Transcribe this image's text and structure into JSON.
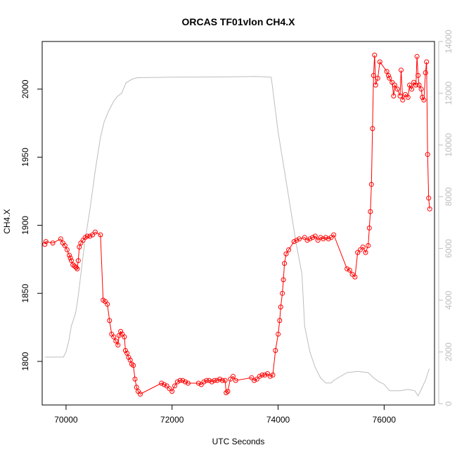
{
  "chart_data": {
    "type": "line",
    "title": "ORCAS TF01vlon CH4.X",
    "xlabel": "UTC Seconds",
    "ylabel": "CH4.X",
    "y2label": "",
    "xlim": [
      69550,
      76950
    ],
    "ylim": [
      1768,
      2035
    ],
    "y2lim": [
      -50,
      14000
    ],
    "x_ticks": [
      "70000",
      "72000",
      "74000",
      "76000"
    ],
    "y_ticks": [
      "1800",
      "1850",
      "1900",
      "1950",
      "2000"
    ],
    "y2_ticks": [
      "0",
      "2000",
      "4000",
      "6000",
      "8000",
      "10000",
      "12000",
      "14000"
    ],
    "grid": false,
    "legend": "none",
    "series": [
      {
        "axis": "right",
        "color": "#bdbdbd",
        "points": [
          [
            69600,
            1800
          ],
          [
            69950,
            1800
          ],
          [
            70000,
            2000
          ],
          [
            70050,
            2400
          ],
          [
            70100,
            3000
          ],
          [
            70180,
            3500
          ],
          [
            70220,
            4000
          ],
          [
            70280,
            5000
          ],
          [
            70350,
            6200
          ],
          [
            70450,
            7500
          ],
          [
            70550,
            9000
          ],
          [
            70650,
            10300
          ],
          [
            70720,
            10900
          ],
          [
            70800,
            11300
          ],
          [
            70900,
            11700
          ],
          [
            70980,
            11900
          ],
          [
            71050,
            12000
          ],
          [
            71130,
            12400
          ],
          [
            71250,
            12550
          ],
          [
            71350,
            12600
          ],
          [
            72000,
            12620
          ],
          [
            73000,
            12630
          ],
          [
            73600,
            12650
          ],
          [
            73870,
            12620
          ],
          [
            74000,
            10500
          ],
          [
            74120,
            9000
          ],
          [
            74230,
            7600
          ],
          [
            74340,
            6200
          ],
          [
            74450,
            5000
          ],
          [
            74500,
            3000
          ],
          [
            74600,
            2000
          ],
          [
            74700,
            1400
          ],
          [
            74800,
            1000
          ],
          [
            74900,
            800
          ],
          [
            75000,
            800
          ],
          [
            75050,
            900
          ],
          [
            75300,
            1200
          ],
          [
            75500,
            1250
          ],
          [
            75700,
            1200
          ],
          [
            75800,
            1000
          ],
          [
            75900,
            850
          ],
          [
            76000,
            750
          ],
          [
            76100,
            500
          ],
          [
            76300,
            500
          ],
          [
            76450,
            550
          ],
          [
            76580,
            500
          ],
          [
            76640,
            300
          ],
          [
            76700,
            550
          ],
          [
            76780,
            900
          ],
          [
            76850,
            1350
          ]
        ]
      },
      {
        "axis": "left",
        "color": "#ff0000",
        "points": [
          [
            69600,
            1886
          ],
          [
            69620,
            1888
          ],
          [
            69750,
            1887
          ],
          [
            69900,
            1890
          ],
          [
            69940,
            1887
          ],
          [
            69980,
            1885
          ],
          [
            70020,
            1882
          ],
          [
            70060,
            1878
          ],
          [
            70080,
            1876
          ],
          [
            70100,
            1874
          ],
          [
            70130,
            1871
          ],
          [
            70160,
            1870
          ],
          [
            70190,
            1869
          ],
          [
            70210,
            1868
          ],
          [
            70230,
            1874
          ],
          [
            70250,
            1884
          ],
          [
            70280,
            1887
          ],
          [
            70320,
            1889
          ],
          [
            70360,
            1891
          ],
          [
            70400,
            1892
          ],
          [
            70450,
            1892
          ],
          [
            70500,
            1893
          ],
          [
            70550,
            1895
          ],
          [
            70650,
            1893
          ],
          [
            70700,
            1845
          ],
          [
            70740,
            1844
          ],
          [
            70780,
            1842
          ],
          [
            70820,
            1830
          ],
          [
            70860,
            1820
          ],
          [
            70900,
            1818
          ],
          [
            70940,
            1815
          ],
          [
            70980,
            1812
          ],
          [
            71000,
            1819
          ],
          [
            71030,
            1822
          ],
          [
            71060,
            1820
          ],
          [
            71100,
            1818
          ],
          [
            71120,
            1808
          ],
          [
            71150,
            1806
          ],
          [
            71180,
            1803
          ],
          [
            71210,
            1801
          ],
          [
            71240,
            1798
          ],
          [
            71270,
            1797
          ],
          [
            71300,
            1787
          ],
          [
            71330,
            1781
          ],
          [
            71360,
            1778
          ],
          [
            71400,
            1776
          ],
          [
            71800,
            1784
          ],
          [
            71850,
            1783
          ],
          [
            71900,
            1782
          ],
          [
            71950,
            1780
          ],
          [
            72000,
            1778
          ],
          [
            72050,
            1782
          ],
          [
            72100,
            1785
          ],
          [
            72150,
            1786
          ],
          [
            72200,
            1786
          ],
          [
            72250,
            1785
          ],
          [
            72300,
            1784
          ],
          [
            72500,
            1784
          ],
          [
            72550,
            1783
          ],
          [
            72600,
            1785
          ],
          [
            72650,
            1786
          ],
          [
            72700,
            1786
          ],
          [
            72750,
            1785
          ],
          [
            72800,
            1786
          ],
          [
            72850,
            1786
          ],
          [
            72900,
            1787
          ],
          [
            72950,
            1786
          ],
          [
            73000,
            1786
          ],
          [
            73020,
            1777
          ],
          [
            73050,
            1778
          ],
          [
            73100,
            1787
          ],
          [
            73150,
            1789
          ],
          [
            73200,
            1786
          ],
          [
            73500,
            1788
          ],
          [
            73550,
            1786
          ],
          [
            73600,
            1787
          ],
          [
            73650,
            1789
          ],
          [
            73700,
            1790
          ],
          [
            73750,
            1790
          ],
          [
            73800,
            1791
          ],
          [
            73850,
            1789
          ],
          [
            73900,
            1790
          ],
          [
            73950,
            1808
          ],
          [
            74000,
            1820
          ],
          [
            74030,
            1830
          ],
          [
            74050,
            1840
          ],
          [
            74080,
            1850
          ],
          [
            74100,
            1860
          ],
          [
            74120,
            1872
          ],
          [
            74150,
            1879
          ],
          [
            74200,
            1882
          ],
          [
            74300,
            1888
          ],
          [
            74350,
            1889
          ],
          [
            74400,
            1890
          ],
          [
            74500,
            1891
          ],
          [
            74550,
            1889
          ],
          [
            74600,
            1890
          ],
          [
            74650,
            1891
          ],
          [
            74700,
            1892
          ],
          [
            74750,
            1889
          ],
          [
            74800,
            1891
          ],
          [
            74850,
            1890
          ],
          [
            74900,
            1891
          ],
          [
            74950,
            1890
          ],
          [
            75000,
            1891
          ],
          [
            75050,
            1893
          ],
          [
            75300,
            1868
          ],
          [
            75350,
            1867
          ],
          [
            75400,
            1864
          ],
          [
            75450,
            1862
          ],
          [
            75500,
            1880
          ],
          [
            75550,
            1882
          ],
          [
            75600,
            1884
          ],
          [
            75650,
            1880
          ],
          [
            75700,
            1885
          ],
          [
            75720,
            1898
          ],
          [
            75740,
            1910
          ],
          [
            75760,
            1930
          ],
          [
            75780,
            1971
          ],
          [
            75800,
            2010
          ],
          [
            75820,
            2025
          ],
          [
            75840,
            2003
          ],
          [
            75880,
            2008
          ],
          [
            75920,
            2020
          ],
          [
            76050,
            2013
          ],
          [
            76080,
            2010
          ],
          [
            76100,
            2008
          ],
          [
            76150,
            2005
          ],
          [
            76180,
            1995
          ],
          [
            76200,
            2003
          ],
          [
            76250,
            2000
          ],
          [
            76300,
            1995
          ],
          [
            76320,
            2014
          ],
          [
            76350,
            1992
          ],
          [
            76400,
            1996
          ],
          [
            76450,
            1994
          ],
          [
            76480,
            2003
          ],
          [
            76520,
            2000
          ],
          [
            76560,
            2005
          ],
          [
            76600,
            2003
          ],
          [
            76620,
            2024
          ],
          [
            76640,
            2010
          ],
          [
            76660,
            2003
          ],
          [
            76700,
            2000
          ],
          [
            76720,
            1994
          ],
          [
            76750,
            1992
          ],
          [
            76780,
            2012
          ],
          [
            76800,
            2020
          ],
          [
            76820,
            1952
          ],
          [
            76840,
            1920
          ],
          [
            76860,
            1912
          ]
        ]
      }
    ]
  }
}
